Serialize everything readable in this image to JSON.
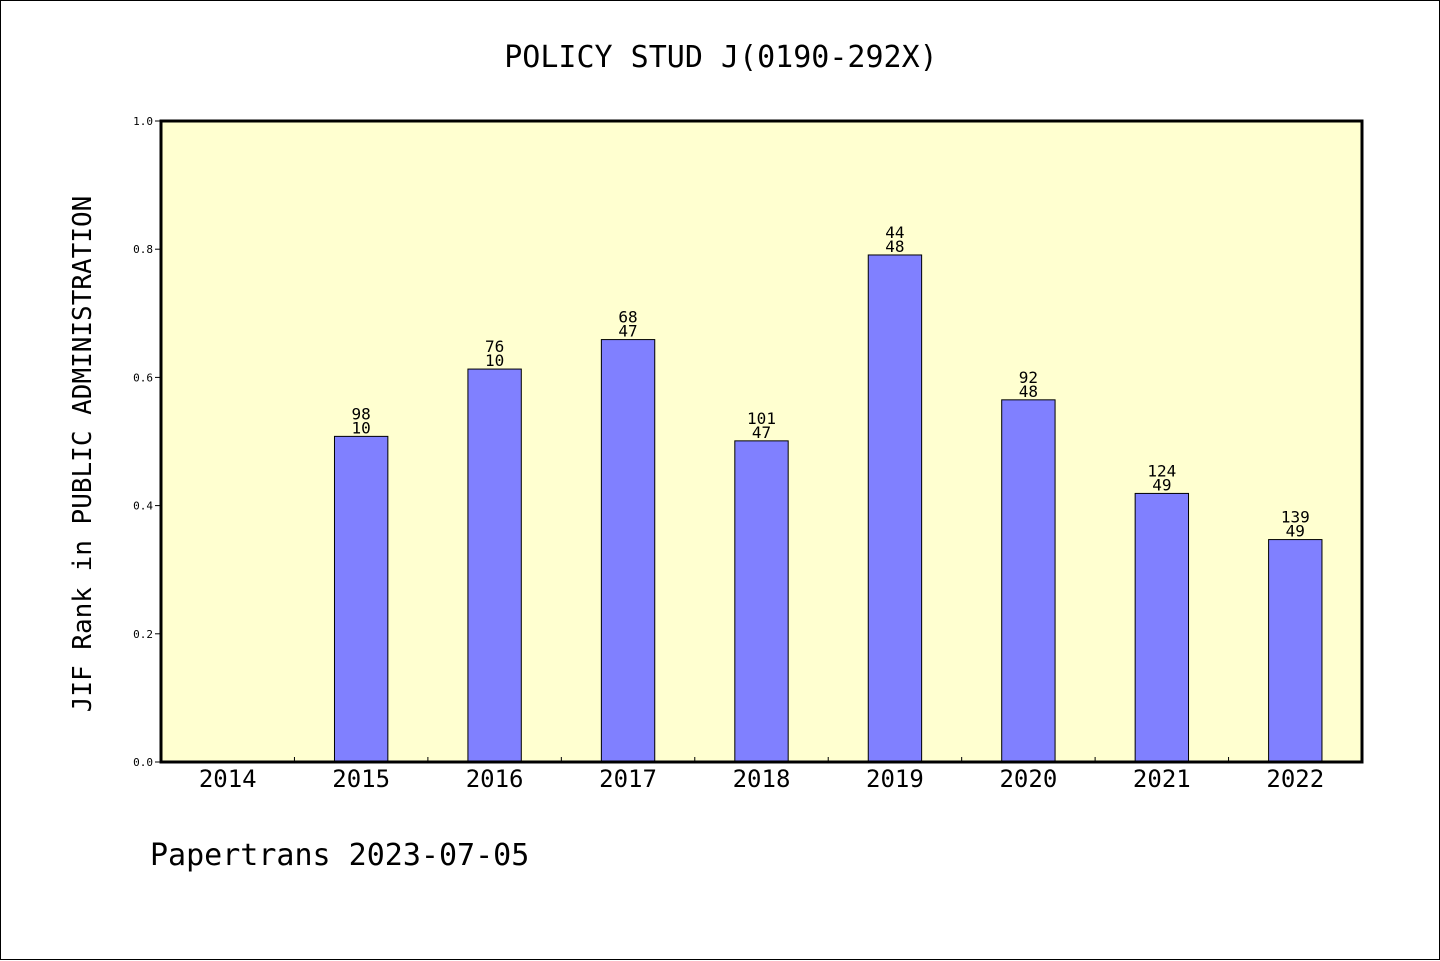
{
  "chart_data": {
    "type": "bar",
    "title": "POLICY STUD J(0190-292X)",
    "ylabel": "JIF Rank in PUBLIC ADMINISTRATION",
    "xlabel": "",
    "ylim": [
      0,
      1.0
    ],
    "yticks": [
      "0.0",
      "0.2",
      "0.4",
      "0.6",
      "0.8",
      "1.0"
    ],
    "categories": [
      "2014",
      "2015",
      "2016",
      "2017",
      "2018",
      "2019",
      "2020",
      "2021",
      "2022"
    ],
    "values": [
      null,
      0.508,
      0.613,
      0.659,
      0.501,
      0.791,
      0.565,
      0.419,
      0.347
    ],
    "rank_labels": [
      "",
      "98",
      "76",
      "68",
      "101",
      "44",
      "92",
      "124",
      "139"
    ],
    "total_labels": [
      "",
      "10",
      "10",
      "47",
      "47",
      "48",
      "48",
      "49",
      "49"
    ],
    "footer": "Papertrans 2023-07-05",
    "colors": {
      "plot_background": "#ffffd0",
      "bar_fill": "#8080ff",
      "bar_stroke": "#000000",
      "axis": "#000000"
    }
  }
}
